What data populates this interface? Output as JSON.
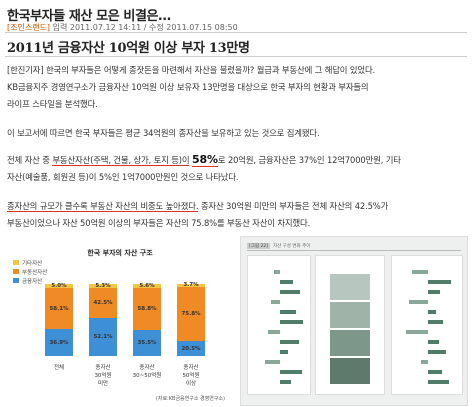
{
  "header": {
    "title": "한국부자들 재산 모은 비결은…",
    "meta_source": "[조인스랜드]",
    "meta_dates": " 입력 2011.07.12 14:11 / 수정 2011.07.15 08:50"
  },
  "subtitle": "2011년 금융자산 10억원 이상 부자 13만명",
  "paragraphs": {
    "p1_line1": "[한진기자] 한국의 부자들은 어떻게 종잣돈을 마련해서 자산을 불렸을까? 월급과 부동산에 그 해답이 있었다.",
    "p1_line2": "KB금융지주 경영연구소가 금융자산 10억원 이상 보유자 13만명을 대상으로 한국 부자의 현황과 부자들의",
    "p1_line3": "라이프 스타일을 분석했다.",
    "p2": "이 보고서에 따르면 한국 부자들은 평균 34억원의 종자산을 보유하고 있는 것으로 집계됐다.",
    "p3_a": "전체 자산 중 ",
    "p3_underlined": "부동산자산(주택, 건물, 상가, 토지 등)이",
    "p3_b": " ",
    "p3_big": "58%",
    "p3_c": "로 20억원, 금융자산은 37%인 12억7000만원, 기타",
    "p3_line2": "자산(예술품, 회원권 등)이 5%인 1억7000만원인 것으로 나타났다.",
    "p4_underlined": "종자산의 규모가 클수록 부동산 자산의 비중도 높아졌다.",
    "p4_rest": " 종자산 30억원 미만의 부자들은 전체 자산의 42.5%가",
    "p4_line2": "부동산이었으나 자산 50억원 이상의 부자들은 자산의 75.8%를 부동산 자산이 차지했다."
  },
  "figure1": {
    "title": "한국 부자의 자산 구조",
    "legend": [
      "기타자산",
      "부동산자산",
      "금융자산"
    ],
    "footnote": "(자료:KB금융연구소 경영연구소)",
    "colors": {
      "other": "#f4c542",
      "real_estate": "#f08a24",
      "financial": "#3d8fd6"
    },
    "categories": [
      {
        "label_lines": [
          "전체"
        ],
        "other": 5.0,
        "real_estate": 58.1,
        "financial": 36.9,
        "labels": [
          "5.0%",
          "58.1%",
          "36.9%"
        ]
      },
      {
        "label_lines": [
          "종자산",
          "30억원",
          "미만"
        ],
        "other": 5.3,
        "real_estate": 42.5,
        "financial": 52.1,
        "labels": [
          "5.3%",
          "42.5%",
          "52.1%"
        ]
      },
      {
        "label_lines": [
          "종자산",
          "30~50억원"
        ],
        "other": 5.6,
        "real_estate": 58.8,
        "financial": 35.5,
        "labels": [
          "5.6%",
          "58.8%",
          "35.5%"
        ]
      },
      {
        "label_lines": [
          "종자산",
          "50억원",
          "이상"
        ],
        "other": 3.7,
        "real_estate": 75.8,
        "financial": 20.5,
        "labels": [
          "3.7%",
          "75.8%",
          "20.5%"
        ]
      }
    ]
  },
  "figure2": {
    "tag": "[그림 22]",
    "title": "자산 구성 변화 추이"
  }
}
